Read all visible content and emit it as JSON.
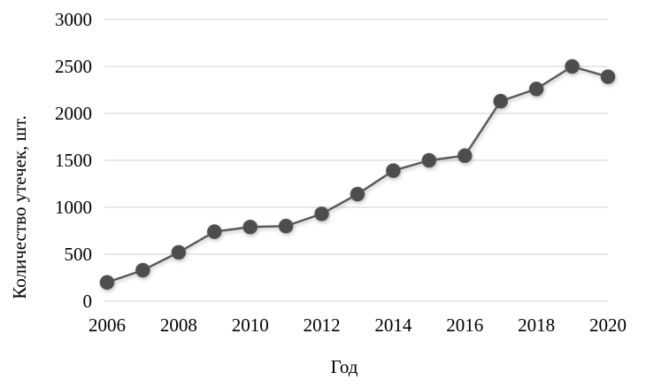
{
  "chart_data": {
    "type": "line",
    "title": "",
    "xlabel": "Год",
    "ylabel": "Количество утечек, шт.",
    "x": [
      2006,
      2007,
      2008,
      2009,
      2010,
      2011,
      2012,
      2013,
      2014,
      2015,
      2016,
      2017,
      2018,
      2019,
      2020
    ],
    "series": [
      {
        "name": "Количество утечек, шт.",
        "values": [
          200,
          330,
          520,
          740,
          790,
          800,
          930,
          1140,
          1390,
          1500,
          1550,
          2130,
          2260,
          2500,
          2390
        ]
      }
    ],
    "ylim": [
      0,
      3000
    ],
    "yticks": [
      0,
      500,
      1000,
      1500,
      2000,
      2500,
      3000
    ],
    "xticks": [
      2006,
      2008,
      2010,
      2012,
      2014,
      2016,
      2018,
      2020
    ],
    "grid": true,
    "legend_position": "none",
    "marker": "circle",
    "colors": {
      "line": "#595959",
      "marker_fill": "#4d4d4d",
      "marker_edge": "#595959",
      "gridline": "#d9d9d9",
      "text": "#000000",
      "background": "#ffffff"
    }
  }
}
